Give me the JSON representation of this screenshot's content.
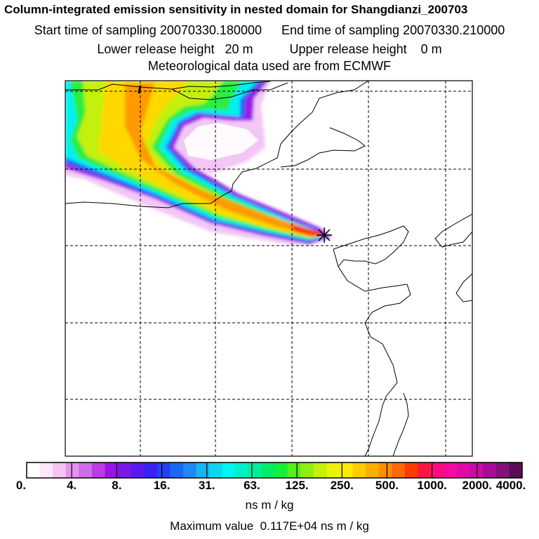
{
  "header": {
    "title": "Column-integrated emission sensitivity in nested domain for Shangdianzi_200703",
    "start_label": "Start time of sampling",
    "start_value": "20070330.180000",
    "end_label": "End time of sampling",
    "end_value": "20070330.210000",
    "lower_label": "Lower release height",
    "lower_value": "20 m",
    "upper_label": "Upper release height",
    "upper_value": "0 m",
    "met_line": "Meteorological data used are from ECMWF"
  },
  "map": {
    "receptor_marker": "asterisk-marker",
    "plume_direction": "from north-west to receptor"
  },
  "legend": {
    "ticks": [
      "0.",
      "4.",
      "8.",
      "16.",
      "31.",
      "63.",
      "125.",
      "250.",
      "500.",
      "1000.",
      "2000.",
      "4000."
    ],
    "unit": "ns m / kg",
    "colors": [
      "#ffffff",
      "#fde6fb",
      "#f4c4f3",
      "#e592ee",
      "#cf6ce8",
      "#bc3be5",
      "#9b13e6",
      "#7c16e9",
      "#5a18ee",
      "#3c1ff2",
      "#2340f5",
      "#1a66f6",
      "#1d88f6",
      "#16b3f5",
      "#10d5f1",
      "#00f4f0",
      "#00f0c4",
      "#00ee9a",
      "#00ec6a",
      "#15ee3a",
      "#55ef15",
      "#8ef010",
      "#c4f00c",
      "#eaf30a",
      "#ffe900",
      "#ffcc00",
      "#ffae00",
      "#ff8d00",
      "#ff6a00",
      "#ff3a00",
      "#ff1640",
      "#ff0a80",
      "#f50aa0",
      "#e00aa8",
      "#c80aa6",
      "#a80a96",
      "#851078",
      "#5a0d55"
    ]
  },
  "footer": {
    "max_label": "Maximum value",
    "max_value": "0.117E+04 ns m / kg"
  }
}
